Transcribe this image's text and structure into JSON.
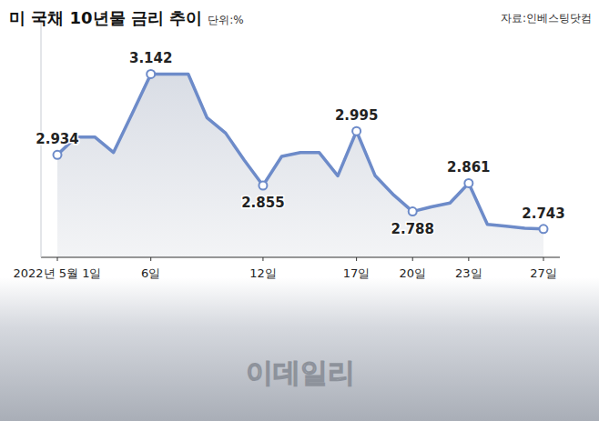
{
  "chart_data": {
    "type": "line",
    "title": "미 국채 10년물 금리 추이",
    "subtitle": "단위:%",
    "annotations": [
      "자료:인베스팅닷컴",
      "이데일리"
    ],
    "categories": [
      "2022년 5월 1일",
      null,
      null,
      null,
      null,
      "6일",
      null,
      null,
      null,
      null,
      null,
      "12일",
      null,
      null,
      null,
      null,
      "17일",
      null,
      null,
      "20일",
      null,
      null,
      "23일",
      null,
      null,
      null,
      "27일"
    ],
    "values": [
      2.934,
      2.98,
      2.98,
      2.94,
      3.04,
      3.142,
      3.142,
      3.142,
      3.03,
      2.99,
      2.92,
      2.855,
      2.93,
      2.94,
      2.94,
      2.88,
      2.995,
      2.88,
      2.83,
      2.788,
      2.8,
      2.81,
      2.861,
      2.755,
      2.75,
      2.745,
      2.743
    ],
    "value_labels": [
      "2.934",
      null,
      null,
      null,
      null,
      "3.142",
      null,
      null,
      null,
      null,
      null,
      "2.855",
      null,
      null,
      null,
      null,
      "2.995",
      null,
      null,
      "2.788",
      null,
      null,
      "2.861",
      null,
      null,
      null,
      "2.743"
    ],
    "color": "#6d8bc9",
    "ylim": [
      2.67,
      3.3
    ],
    "yticks": [],
    "tick_labels": "x",
    "grid": false
  }
}
